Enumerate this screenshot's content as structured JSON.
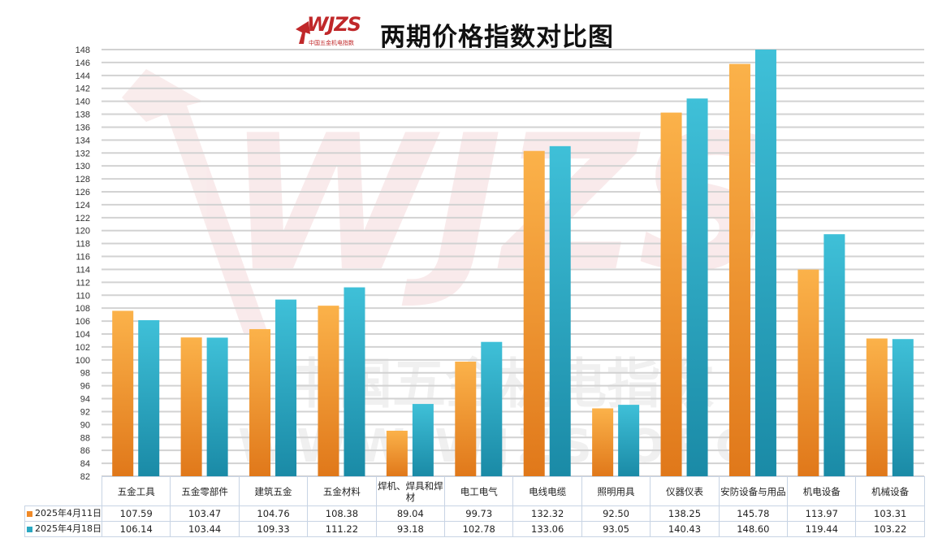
{
  "title": "两期价格指数对比图",
  "logo": {
    "text": "WJZS",
    "subtitle": "中国五金机电指数",
    "url": "WWW.WJZS.ORG"
  },
  "watermark": {
    "cn": "中国五金机电指数",
    "url": "WWW.WJZS.ORG"
  },
  "colors": {
    "series1": "#f08a28",
    "series2": "#2aa8c2",
    "grid": "#d2d2d2",
    "border": "#c8d4e4",
    "watermark": "#c0282a"
  },
  "chart_data": {
    "type": "bar",
    "title": "两期价格指数对比图",
    "categories": [
      "五金工具",
      "五金零部件",
      "建筑五金",
      "五金材料",
      "焊机、焊具和焊材",
      "电工电气",
      "电线电缆",
      "照明用具",
      "仪器仪表",
      "安防设备与用品",
      "机电设备",
      "机械设备"
    ],
    "series": [
      {
        "name": "2025年4月11日",
        "values": [
          107.59,
          103.47,
          104.76,
          108.38,
          89.04,
          99.73,
          132.32,
          92.5,
          138.25,
          145.78,
          113.97,
          103.31
        ],
        "labels": [
          "107.59",
          "103.47",
          "104.76",
          "108.38",
          "89.04",
          "99.73",
          "132.32",
          "92.50",
          "138.25",
          "145.78",
          "113.97",
          "103.31"
        ]
      },
      {
        "name": "2025年4月18日",
        "values": [
          106.14,
          103.44,
          109.33,
          111.22,
          93.18,
          102.78,
          133.06,
          93.05,
          140.43,
          148.6,
          119.44,
          103.22
        ],
        "labels": [
          "106.14",
          "103.44",
          "109.33",
          "111.22",
          "93.18",
          "102.78",
          "133.06",
          "93.05",
          "140.43",
          "148.60",
          "119.44",
          "103.22"
        ]
      }
    ],
    "ylim": [
      82,
      148
    ],
    "ytick_step": 2,
    "xlabel": "",
    "ylabel": "",
    "grid": true,
    "legend": "data-table"
  }
}
